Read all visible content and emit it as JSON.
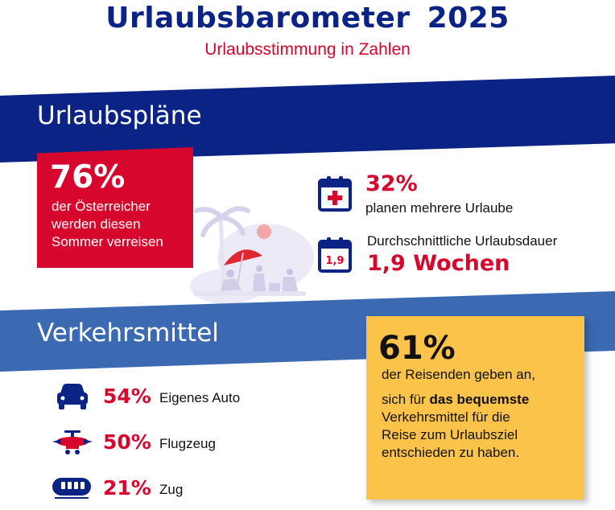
{
  "header": {
    "title": "Urlaubsbarometer  2025",
    "subtitle": "Urlaubsstimmung in Zahlen"
  },
  "section_plans": {
    "title": "Urlaubspläne",
    "main_stat": {
      "value": "76%",
      "lines": [
        "der Österreicher",
        "werden diesen",
        "Sommer verreisen"
      ]
    },
    "stat_multiple": {
      "value": "32%",
      "label": "planen mehrere Urlaube"
    },
    "stat_duration": {
      "label": "Durchschnittliche Urlaubsdauer",
      "value": "1,9 Wochen",
      "icon_text": "1,9"
    }
  },
  "section_transport": {
    "title": "Verkehrsmittel",
    "items": [
      {
        "value": "54%",
        "label": "Eigenes Auto",
        "icon": "car-icon"
      },
      {
        "value": "50%",
        "label": "Flugzeug",
        "icon": "airplane-icon"
      },
      {
        "value": "21%",
        "label": "Zug",
        "icon": "train-icon"
      }
    ],
    "highlight": {
      "value": "61%",
      "line1": "der Reisenden geben an,",
      "line2_pre": "sich für ",
      "line2_bold": "das bequemste",
      "line3": "Verkehrsmittel für die",
      "line4": "Reise zum Urlaubsziel",
      "line5": "entschieden zu haben."
    }
  },
  "colors": {
    "navy": "#0b2385",
    "red": "#d7062c",
    "blue": "#3b6ab3",
    "yellow": "#fcc34a"
  }
}
